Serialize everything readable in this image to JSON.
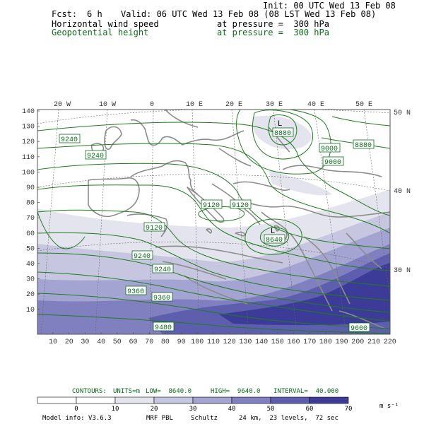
{
  "header": {
    "init": "Init: 00 UTC Wed 13 Feb 08",
    "fcst_label": "Fcst:",
    "fcst_value": "6 h",
    "valid": "Valid: 06 UTC Wed 13 Feb 08 (08 LST Wed 13 Feb 08)",
    "field1_name": "Horizontal wind speed",
    "field1_level": "at pressure =  300 hPa",
    "field2_name": "Geopotential height",
    "field2_level": "at pressure =  300 hPa"
  },
  "map": {
    "lon_labels": [
      "20 W",
      "10 W",
      "0",
      "10 E",
      "20 E",
      "30 E",
      "40 E",
      "50 E"
    ],
    "lat_labels": [
      "50 N",
      "40 N",
      "30 N"
    ],
    "y_ticks": [
      "140",
      "130",
      "120",
      "110",
      "100",
      "90",
      "80",
      "70",
      "60",
      "50",
      "40",
      "30",
      "20",
      "10"
    ],
    "x_ticks": [
      "10",
      "20",
      "30",
      "40",
      "50",
      "60",
      "70",
      "80",
      "90",
      "100",
      "110",
      "120",
      "130",
      "140",
      "150",
      "160",
      "170",
      "180",
      "190",
      "200",
      "210",
      "220"
    ],
    "contour_labels": [
      "9240",
      "9240",
      "8880",
      "9000",
      "9000",
      "9120",
      "9120",
      "9120",
      "9240",
      "9240",
      "9360",
      "9360",
      "9480",
      "9600",
      "8880",
      "8640"
    ],
    "low_marker": "L",
    "colors": {
      "contour": "#1e7d1e",
      "label_border": "#0a6b1a",
      "coast": "#8c8c8c",
      "shades": [
        "#e4e4ee",
        "#c6c6e0",
        "#a4a4d2",
        "#8080c0",
        "#5e5eae",
        "#3c3c98"
      ]
    }
  },
  "contours_info": {
    "contours": "CONTOURS:",
    "units": "UNITS=m",
    "low": "LOW=  8640.0",
    "high": "HIGH=  9640.0",
    "interval": "INTERVAL=  40.000"
  },
  "colorbar": {
    "labels": [
      "0",
      "10",
      "20",
      "30",
      "40",
      "50",
      "60",
      "70"
    ],
    "units": "m s⁻¹",
    "colors": [
      "#ffffff",
      "#ffffff",
      "#e4e4ee",
      "#c6c6e0",
      "#a4a4d2",
      "#8080c0",
      "#5e5eae",
      "#3c3c98"
    ]
  },
  "footer": {
    "model_info": "Model info: V3.6.3",
    "pbl": "MRF PBL",
    "scheme": "Schultz",
    "res": "24 km,  23 levels,  72 sec"
  }
}
